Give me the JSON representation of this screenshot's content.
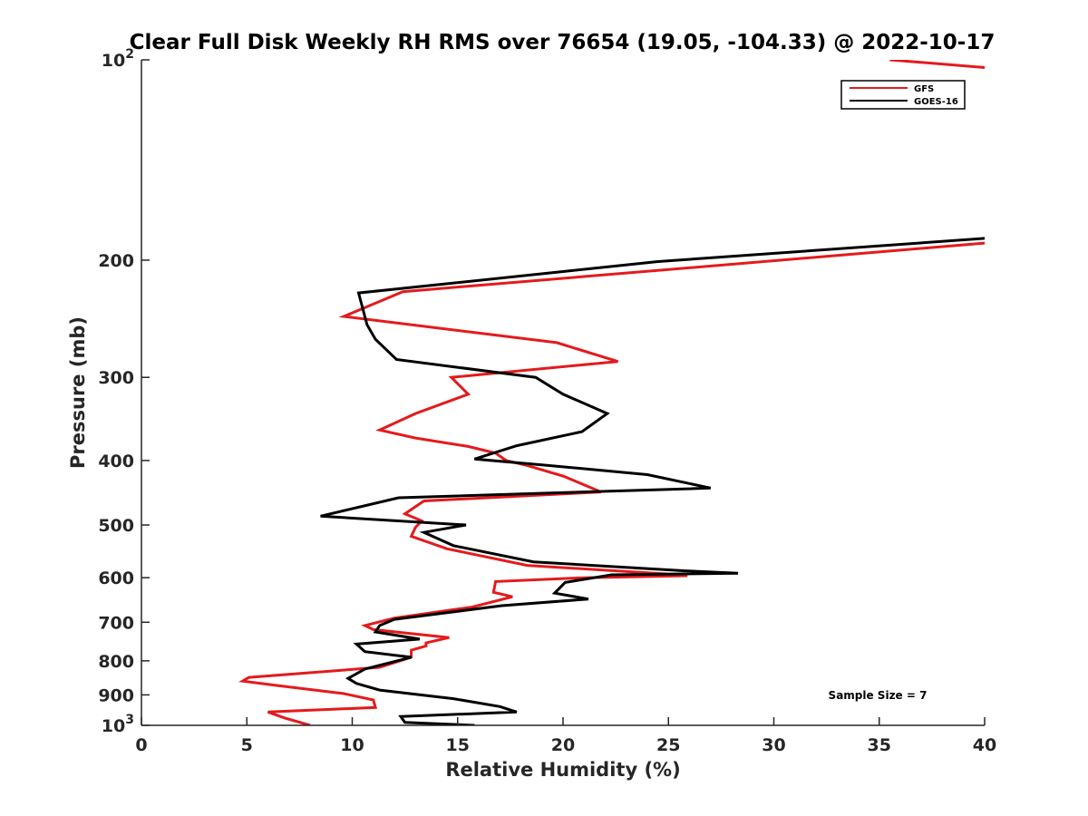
{
  "chart_data": {
    "type": "line",
    "title": "Clear Full Disk Weekly RH RMS over 76654 (19.05, -104.33) @ 2022-10-17",
    "xlabel": "Relative Humidity (%)",
    "ylabel": "Pressure (mb)",
    "xlim": [
      0,
      40
    ],
    "ylim": [
      100,
      1000
    ],
    "y_scale": "log",
    "y_reversed": true,
    "grid": false,
    "legend_position": "top-right",
    "x_ticks": [
      0,
      5,
      10,
      15,
      20,
      25,
      30,
      35,
      40
    ],
    "x_tick_labels": [
      "0",
      "5",
      "10",
      "15",
      "20",
      "25",
      "30",
      "35",
      "40"
    ],
    "y_ticks": [
      {
        "value": 100,
        "base": "10",
        "exp": "2"
      },
      {
        "value": 200,
        "label": "200"
      },
      {
        "value": 300,
        "label": "300"
      },
      {
        "value": 400,
        "label": "400"
      },
      {
        "value": 500,
        "label": "500"
      },
      {
        "value": 600,
        "label": "600"
      },
      {
        "value": 700,
        "label": "700"
      },
      {
        "value": 800,
        "label": "800"
      },
      {
        "value": 900,
        "label": "900"
      },
      {
        "value": 1000,
        "base": "10",
        "exp": "3"
      }
    ],
    "series": [
      {
        "name": "GFS",
        "color": "#e41a1c",
        "points": [
          [
            35.5,
            100
          ],
          [
            40.5,
            103
          ],
          [
            40.5,
            188
          ],
          [
            12.4,
            223
          ],
          [
            9.6,
            243
          ],
          [
            19.7,
            266
          ],
          [
            22.6,
            284
          ],
          [
            14.7,
            300
          ],
          [
            15.5,
            318
          ],
          [
            13.0,
            340
          ],
          [
            11.3,
            360
          ],
          [
            13.0,
            370
          ],
          [
            15.5,
            381
          ],
          [
            16.8,
            390
          ],
          [
            17.3,
            400
          ],
          [
            18.3,
            407
          ],
          [
            20.0,
            422
          ],
          [
            21.8,
            446
          ],
          [
            13.4,
            460
          ],
          [
            12.5,
            481
          ],
          [
            13.3,
            493
          ],
          [
            13.0,
            504
          ],
          [
            12.8,
            520
          ],
          [
            14.5,
            543
          ],
          [
            18.3,
            575
          ],
          [
            24.8,
            592
          ],
          [
            25.9,
            596
          ],
          [
            21.0,
            600
          ],
          [
            16.8,
            608
          ],
          [
            16.7,
            631
          ],
          [
            17.6,
            641
          ],
          [
            15.7,
            664
          ],
          [
            12.0,
            690
          ],
          [
            10.6,
            708
          ],
          [
            11.0,
            718
          ],
          [
            14.6,
            738
          ],
          [
            13.5,
            752
          ],
          [
            13.5,
            760
          ],
          [
            12.8,
            771
          ],
          [
            12.8,
            790
          ],
          [
            11.3,
            818
          ],
          [
            5.1,
            847
          ],
          [
            4.8,
            858
          ],
          [
            6.5,
            872
          ],
          [
            9.6,
            896
          ],
          [
            11.0,
            916
          ],
          [
            11.1,
            940
          ],
          [
            6.0,
            955
          ],
          [
            6.8,
            975
          ],
          [
            8.0,
            1000
          ]
        ]
      },
      {
        "name": "GOES-16",
        "color": "#000000",
        "points": [
          [
            40.5,
            185
          ],
          [
            24.5,
            201
          ],
          [
            20.0,
            208
          ],
          [
            10.3,
            224
          ],
          [
            10.7,
            250
          ],
          [
            11.1,
            263
          ],
          [
            12.1,
            282
          ],
          [
            18.7,
            300
          ],
          [
            20.0,
            318
          ],
          [
            22.1,
            340
          ],
          [
            20.9,
            362
          ],
          [
            17.8,
            380
          ],
          [
            15.8,
            398
          ],
          [
            19.0,
            406
          ],
          [
            24.0,
            420
          ],
          [
            27.0,
            440
          ],
          [
            12.2,
            455
          ],
          [
            8.5,
            485
          ],
          [
            15.4,
            500
          ],
          [
            13.4,
            513
          ],
          [
            14.8,
            537
          ],
          [
            18.6,
            568
          ],
          [
            25.8,
            586
          ],
          [
            28.3,
            591
          ],
          [
            22.3,
            594
          ],
          [
            20.1,
            610
          ],
          [
            19.6,
            633
          ],
          [
            21.2,
            646
          ],
          [
            17.1,
            661
          ],
          [
            12.0,
            693
          ],
          [
            11.3,
            708
          ],
          [
            11.1,
            724
          ],
          [
            13.2,
            742
          ],
          [
            10.2,
            755
          ],
          [
            10.6,
            775
          ],
          [
            12.8,
            790
          ],
          [
            10.6,
            823
          ],
          [
            9.8,
            850
          ],
          [
            10.2,
            865
          ],
          [
            11.3,
            885
          ],
          [
            14.8,
            912
          ],
          [
            17.0,
            937
          ],
          [
            17.8,
            955
          ],
          [
            12.3,
            970
          ],
          [
            12.5,
            990
          ],
          [
            15.8,
            1000
          ]
        ]
      }
    ],
    "annotation": "Sample Size = 7"
  }
}
